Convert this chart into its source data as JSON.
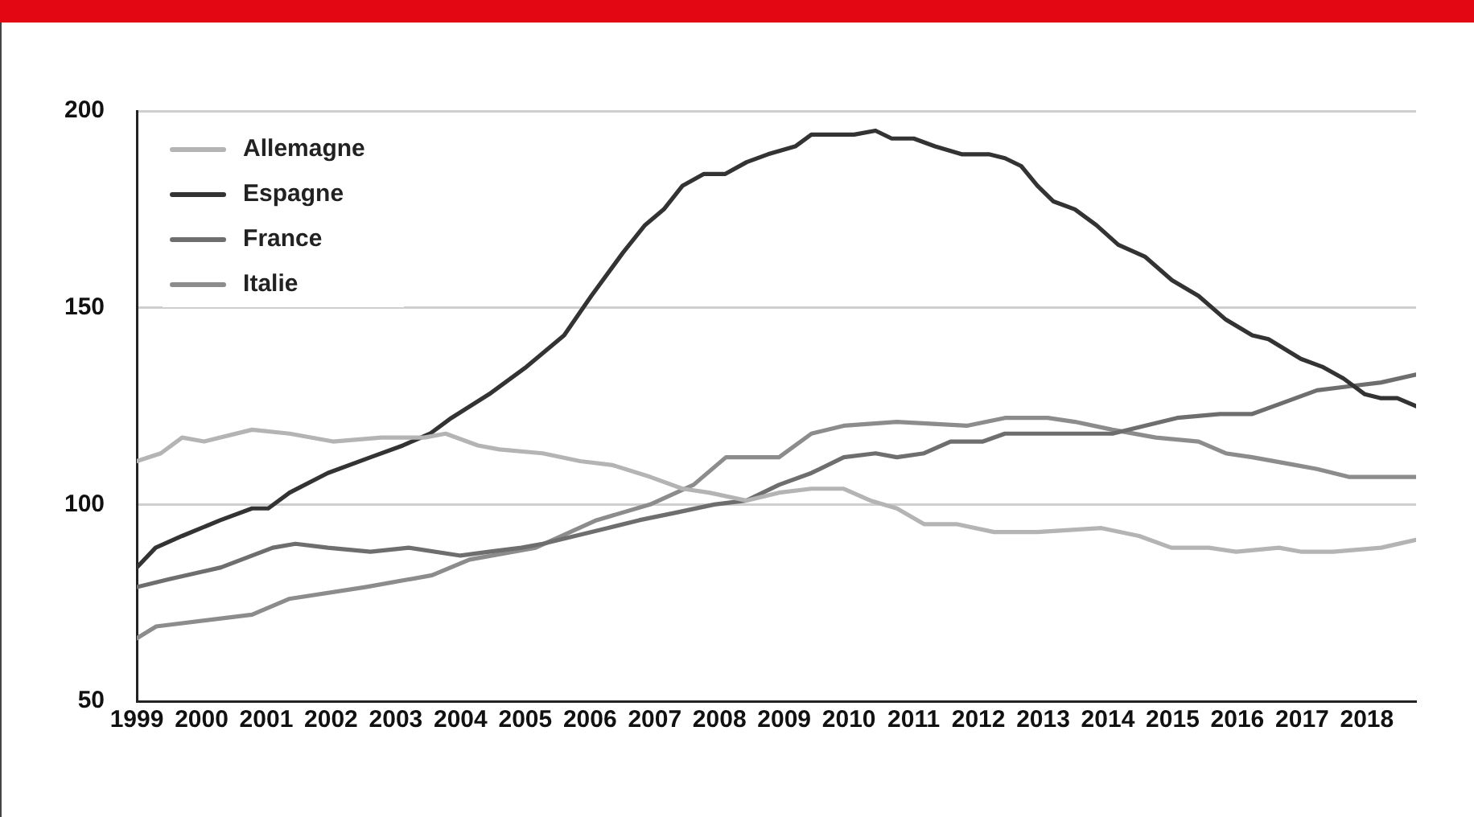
{
  "chart_data": {
    "type": "line",
    "xlim": [
      1999,
      2018.76
    ],
    "xticks": [
      1999,
      2000,
      2001,
      2002,
      2003,
      2004,
      2005,
      2006,
      2007,
      2008,
      2009,
      2010,
      2011,
      2012,
      2013,
      2014,
      2015,
      2016,
      2017,
      2018
    ],
    "ylim": [
      50,
      200
    ],
    "yticks": [
      50,
      100,
      150,
      200
    ],
    "grid": "y",
    "legend": "top left",
    "marker": "none",
    "line_style": "solid",
    "series": [
      {
        "name": "Allemagne",
        "color": "#b4b4b4",
        "x": [
          1999,
          1999.37,
          1999.7,
          2000.04,
          2000.78,
          2001.36,
          2002.03,
          2002.78,
          2003.44,
          2003.77,
          2004.27,
          2004.6,
          2005.27,
          2005.85,
          2006.35,
          2006.93,
          2007.43,
          2007.84,
          2008.42,
          2008.92,
          2009.42,
          2009.92,
          2010.33,
          2010.74,
          2011.16,
          2011.66,
          2012.24,
          2012.91,
          2013.9,
          2014.48,
          2014.98,
          2015.56,
          2015.98,
          2016.64,
          2016.98,
          2017.48,
          2018.22,
          2018.76
        ],
        "values": [
          111,
          113,
          117,
          116,
          119,
          118,
          116,
          117,
          117,
          118,
          115,
          114,
          113,
          111,
          110,
          107,
          104,
          103,
          101,
          103,
          104,
          104,
          101,
          99,
          95,
          95,
          93,
          93,
          94,
          92,
          89,
          89,
          88,
          89,
          88,
          88,
          89,
          91
        ]
      },
      {
        "name": "Espagne",
        "color": "#333333",
        "x": [
          1999,
          1999.29,
          1999.7,
          2000.29,
          2000.78,
          2001.03,
          2001.36,
          2001.95,
          2002.61,
          2003.11,
          2003.53,
          2003.86,
          2004.44,
          2005.02,
          2005.6,
          2006.02,
          2006.51,
          2006.85,
          2007.14,
          2007.43,
          2007.76,
          2008.09,
          2008.42,
          2008.75,
          2009.17,
          2009.42,
          2010.08,
          2010.41,
          2010.66,
          2011.0,
          2011.33,
          2011.74,
          2012.16,
          2012.41,
          2012.66,
          2012.91,
          2013.16,
          2013.49,
          2013.82,
          2014.16,
          2014.57,
          2014.99,
          2015.4,
          2015.82,
          2016.23,
          2016.48,
          2016.98,
          2017.31,
          2017.64,
          2017.97,
          2018.22,
          2018.47,
          2018.76
        ],
        "values": [
          84,
          89,
          92,
          96,
          99,
          99,
          103,
          108,
          112,
          115,
          118,
          122,
          128,
          135,
          143,
          153,
          164,
          171,
          175,
          181,
          184,
          184,
          187,
          189,
          191,
          194,
          194,
          195,
          193,
          193,
          191,
          189,
          189,
          188,
          186,
          181,
          177,
          175,
          171,
          166,
          163,
          157,
          153,
          147,
          143,
          142,
          137,
          135,
          132,
          128,
          127,
          127,
          125
        ]
      },
      {
        "name": "France",
        "color": "#6e6e6e",
        "x": [
          1999,
          1999.5,
          2000.3,
          2001.1,
          2001.45,
          2001.95,
          2002.61,
          2003.2,
          2004.0,
          2004.44,
          2004.94,
          2005.27,
          2005.77,
          2006.27,
          2006.76,
          2007.35,
          2007.92,
          2008.42,
          2008.92,
          2009.42,
          2009.92,
          2010.41,
          2010.74,
          2011.16,
          2011.57,
          2012.07,
          2012.41,
          2013.07,
          2014.07,
          2014.57,
          2015.07,
          2015.73,
          2016.23,
          2016.73,
          2017.23,
          2017.72,
          2018.22,
          2018.76
        ],
        "values": [
          79,
          81,
          84,
          89,
          90,
          89,
          88,
          89,
          87,
          88,
          89,
          90,
          92,
          94,
          96,
          98,
          100,
          101,
          105,
          108,
          112,
          113,
          112,
          113,
          116,
          116,
          118,
          118,
          118,
          120,
          122,
          123,
          123,
          126,
          129,
          130,
          131,
          133
        ]
      },
      {
        "name": "Italie",
        "color": "#8c8c8c",
        "x": [
          1999,
          1999.3,
          2000.78,
          2001.35,
          2002.53,
          2003.56,
          2004.14,
          2005.16,
          2006.1,
          2006.93,
          2007.6,
          2008.1,
          2008.42,
          2008.92,
          2009.42,
          2009.92,
          2010.74,
          2011.82,
          2012.41,
          2013.07,
          2013.49,
          2014.07,
          2014.74,
          2015.4,
          2015.82,
          2016.23,
          2016.9,
          2017.23,
          2017.72,
          2018.22,
          2018.76
        ],
        "values": [
          66,
          69,
          72,
          76,
          79,
          82,
          86,
          89,
          96,
          100,
          105,
          112,
          112,
          112,
          118,
          120,
          121,
          120,
          122,
          122,
          121,
          119,
          117,
          116,
          113,
          112,
          110,
          109,
          107,
          107,
          107
        ]
      }
    ]
  }
}
